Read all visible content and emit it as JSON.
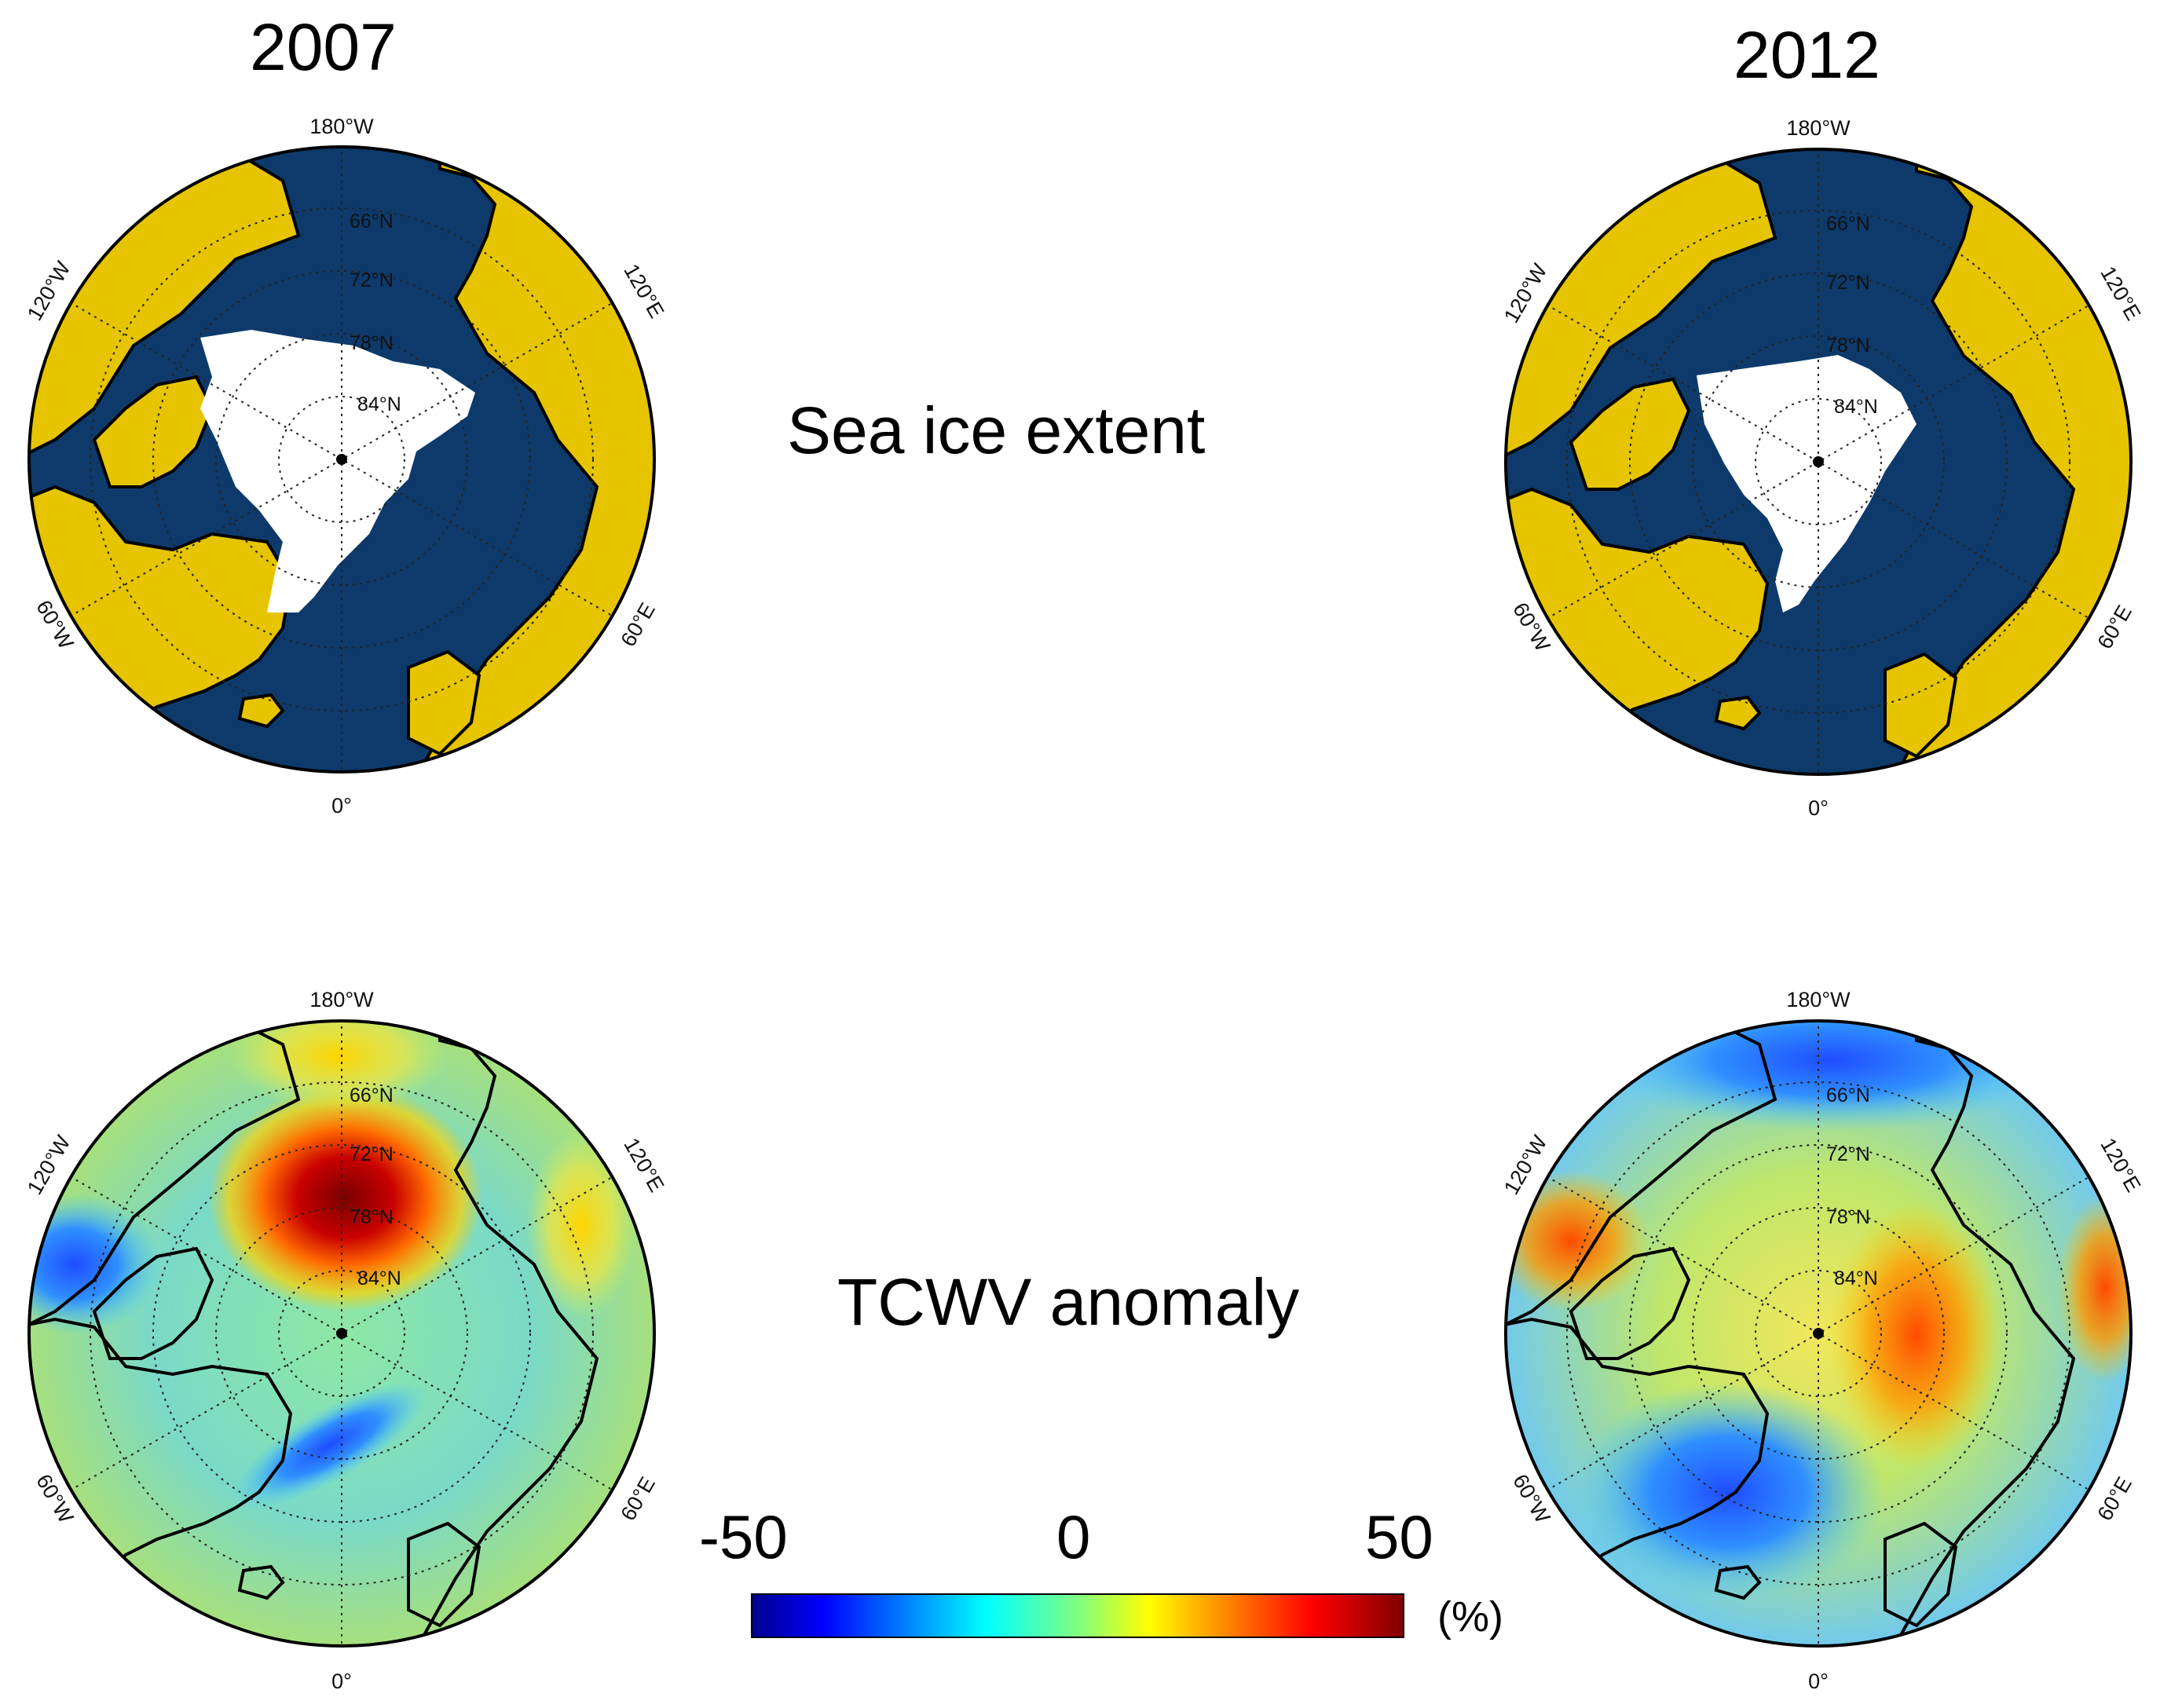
{
  "titles": {
    "year_left": "2007",
    "year_right": "2012",
    "row_top": "Sea ice extent",
    "row_bottom": "TCWV anomaly"
  },
  "map_labels": {
    "lon_top": "180°W",
    "lon_bottom": "0°",
    "lon_upper_left": "120°W",
    "lon_lower_left": "60°W",
    "lon_upper_right": "120°E",
    "lon_lower_right": "60°E",
    "lat_66": "66°N",
    "lat_72": "72°N",
    "lat_78": "78°N",
    "lat_84": "84°N"
  },
  "colorbar": {
    "min_label": "-50",
    "mid_label": "0",
    "max_label": "50",
    "unit": "(%)",
    "range": [
      -50,
      50
    ],
    "colormap": "jet"
  },
  "colors": {
    "ocean": "#0d3a6b",
    "land": "#e6c400",
    "sea_ice": "#ffffff",
    "coastline": "#000000"
  },
  "panels": [
    {
      "variable": "Sea ice extent",
      "year": "2007"
    },
    {
      "variable": "Sea ice extent",
      "year": "2012"
    },
    {
      "variable": "TCWV anomaly",
      "year": "2007"
    },
    {
      "variable": "TCWV anomaly",
      "year": "2012"
    }
  ]
}
